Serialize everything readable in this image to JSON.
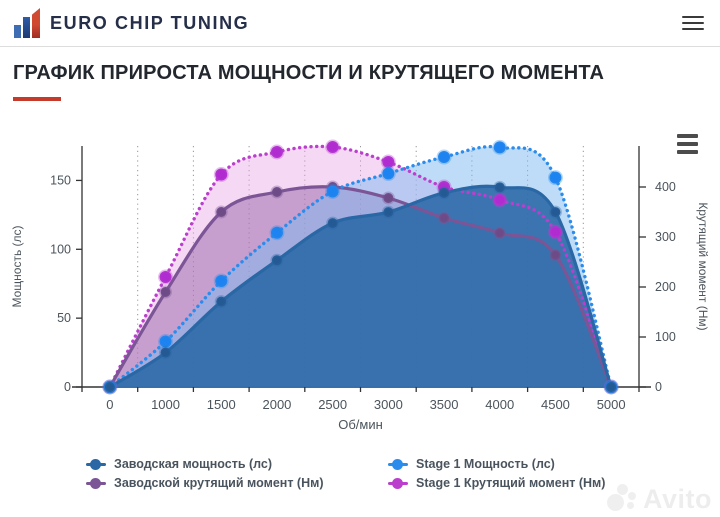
{
  "header": {
    "brand": "EURO CHIP TUNING"
  },
  "page_title": "ГРАФИК ПРИРОСТА МОЩНОСТИ И КРУТЯЩЕГО МОМЕНТА",
  "watermark": {
    "text": "Avito"
  },
  "colors": {
    "accent_red": "#c63a2c",
    "brand_navy": "#252f49",
    "axis_text": "#4b545c",
    "logo_blue": "#3e6db3",
    "logo_red": "#d04a32"
  },
  "chart_data": {
    "type": "line",
    "categories": [
      "0",
      "1000",
      "1500",
      "2000",
      "2500",
      "3000",
      "3500",
      "4000",
      "4500",
      "5000"
    ],
    "xlabel": "Об/мин",
    "grid": "vertical-dotted",
    "legend_position": "bottom",
    "y_left": {
      "label": "Мощность (лс)",
      "ticks": [
        0,
        50,
        100,
        150
      ],
      "max": 175
    },
    "y_right": {
      "label": "Крутящий момент (Нм)",
      "ticks": [
        0,
        100,
        200,
        300,
        400
      ],
      "max": 482
    },
    "series": [
      {
        "name": "Заводская мощность (лс)",
        "axis": "left",
        "style": "solid",
        "color": "#2a67a5",
        "marker_color": "#235a94",
        "fill": "rgba(42,104,167,0.88)",
        "values": [
          0,
          25,
          62,
          92,
          119,
          127,
          141,
          145,
          127,
          0
        ]
      },
      {
        "name": "Stage 1 Мощность (лс)",
        "axis": "left",
        "style": "dotted",
        "color": "#2b8cec",
        "marker_color": "#1d83f0",
        "fill": "rgba(125,185,240,0.50)",
        "values": [
          0,
          33,
          77,
          112,
          142,
          155,
          167,
          174,
          152,
          0
        ]
      },
      {
        "name": "Заводской крутящий момент (Нм)",
        "axis": "right",
        "style": "solid",
        "color": "#7b5596",
        "marker_color": "#6d4b87",
        "fill": "rgba(145,90,160,0.45)",
        "values": [
          0,
          190,
          350,
          390,
          400,
          378,
          338,
          308,
          264,
          0
        ]
      },
      {
        "name": "Stage 1 Крутящий момент (Нм)",
        "axis": "right",
        "style": "dotted",
        "color": "#bb3fcd",
        "marker_color": "#b02cd1",
        "fill": "rgba(228,162,228,0.42)",
        "values": [
          0,
          220,
          425,
          470,
          480,
          450,
          400,
          374,
          310,
          0
        ]
      }
    ]
  }
}
